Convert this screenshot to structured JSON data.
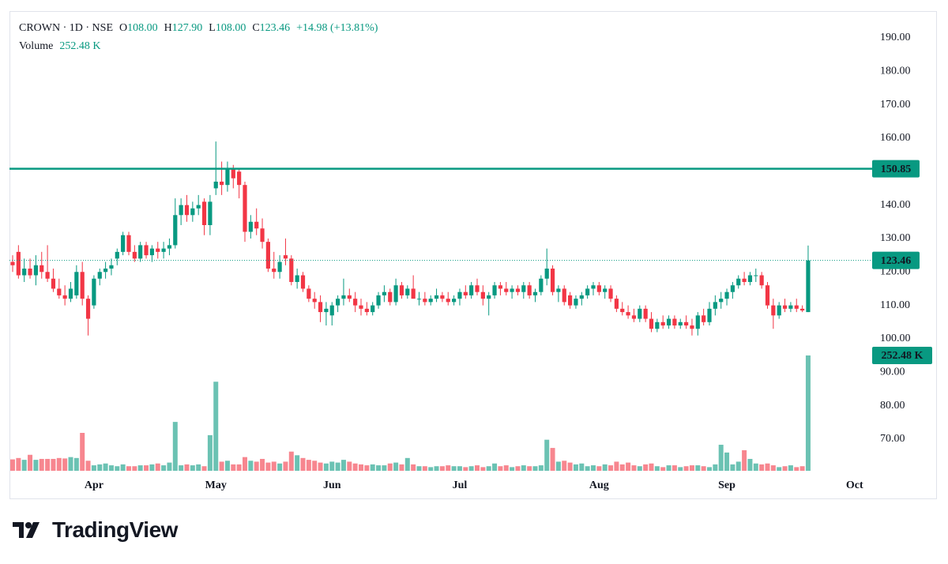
{
  "header": {
    "symbol": "CROWN · 1D · NSE",
    "o_label": "O",
    "open": "108.00",
    "h_label": "H",
    "high": "127.90",
    "l_label": "L",
    "low": "108.00",
    "c_label": "C",
    "close": "123.46",
    "change": "+14.98 (+13.81%)",
    "volume_label": "Volume",
    "volume": "252.48 K"
  },
  "brand": "TradingView",
  "chart_data": {
    "type": "candlestick",
    "up_color": "#089981",
    "down_color": "#f23645",
    "ylim": [
      60.55,
      198.0
    ],
    "yticks": [
      {
        "value": 190,
        "label": "190.00"
      },
      {
        "value": 180,
        "label": "180.00"
      },
      {
        "value": 170,
        "label": "170.00"
      },
      {
        "value": 160,
        "label": "160.00"
      },
      {
        "value": 150,
        "label": "150.00"
      },
      {
        "value": 140,
        "label": "140.00"
      },
      {
        "value": 130,
        "label": "130.00"
      },
      {
        "value": 120,
        "label": "120.00"
      },
      {
        "value": 110,
        "label": "110.00"
      },
      {
        "value": 100,
        "label": "100.00"
      },
      {
        "value": 90,
        "label": "90.00"
      },
      {
        "value": 80,
        "label": "80.00"
      },
      {
        "value": 70,
        "label": "70.00"
      }
    ],
    "hline": 150.85,
    "volume_value_label": "252.48 K",
    "categories": [
      null,
      null,
      null,
      null,
      null,
      null,
      null,
      null,
      null,
      null,
      null,
      null,
      null,
      null,
      "Apr",
      null,
      null,
      null,
      null,
      null,
      null,
      null,
      null,
      null,
      null,
      null,
      null,
      null,
      null,
      null,
      null,
      null,
      null,
      null,
      null,
      "May",
      null,
      null,
      null,
      null,
      null,
      null,
      null,
      null,
      null,
      null,
      null,
      null,
      null,
      null,
      null,
      null,
      null,
      null,
      null,
      "Jun",
      null,
      null,
      null,
      null,
      null,
      null,
      null,
      null,
      null,
      null,
      null,
      null,
      null,
      null,
      null,
      null,
      null,
      null,
      null,
      null,
      null,
      "Jul",
      null,
      null,
      null,
      null,
      null,
      null,
      null,
      null,
      null,
      null,
      null,
      null,
      null,
      null,
      null,
      null,
      null,
      null,
      null,
      null,
      null,
      null,
      null,
      "Aug",
      null,
      null,
      null,
      null,
      null,
      null,
      null,
      null,
      null,
      null,
      null,
      null,
      null,
      null,
      null,
      null,
      null,
      null,
      null,
      null,
      null,
      "Sep",
      null,
      null,
      null,
      null,
      null,
      null,
      null,
      null,
      null,
      null,
      null,
      null,
      null,
      null,
      null,
      null,
      null,
      null,
      null,
      null,
      null,
      "Oct",
      null,
      null
    ],
    "candles": [
      [
        123,
        125,
        120,
        122
      ],
      [
        126,
        128,
        118,
        119
      ],
      [
        119,
        124,
        117,
        121
      ],
      [
        121,
        124,
        118,
        119
      ],
      [
        119,
        125,
        116,
        122
      ],
      [
        122,
        126,
        118,
        120
      ],
      [
        120,
        128,
        117,
        118
      ],
      [
        118,
        121,
        114,
        115
      ],
      [
        115,
        118,
        112,
        113
      ],
      [
        113,
        116,
        110,
        112
      ],
      [
        112,
        117,
        111,
        115
      ],
      [
        113,
        122,
        112,
        120
      ],
      [
        120,
        123,
        110,
        112
      ],
      [
        112,
        113,
        101,
        106
      ],
      [
        110,
        119,
        109,
        118
      ],
      [
        118,
        121,
        116,
        120
      ],
      [
        120,
        123,
        118,
        121
      ],
      [
        121,
        124,
        119,
        122
      ],
      [
        124,
        127,
        122,
        126
      ],
      [
        126,
        132,
        125,
        131
      ],
      [
        131,
        132,
        125,
        126
      ],
      [
        126,
        128,
        123,
        124
      ],
      [
        124,
        129,
        123,
        128
      ],
      [
        128,
        129,
        124,
        125
      ],
      [
        125,
        128,
        123,
        127
      ],
      [
        127,
        129,
        124,
        126
      ],
      [
        126,
        129,
        124,
        127
      ],
      [
        127,
        130,
        125,
        128
      ],
      [
        128,
        142,
        127,
        137
      ],
      [
        137,
        142,
        134,
        140
      ],
      [
        140,
        143,
        135,
        137
      ],
      [
        137,
        141,
        135,
        139
      ],
      [
        139,
        143,
        137,
        140
      ],
      [
        141,
        142,
        131,
        134
      ],
      [
        134,
        143,
        131,
        141
      ],
      [
        145,
        159,
        143,
        147
      ],
      [
        147,
        153,
        143,
        146
      ],
      [
        146,
        153,
        144,
        151
      ],
      [
        151,
        152,
        145,
        148
      ],
      [
        150,
        151,
        142,
        146
      ],
      [
        146,
        147,
        129,
        132
      ],
      [
        132,
        137,
        130,
        135
      ],
      [
        135,
        139,
        131,
        133
      ],
      [
        133,
        136,
        127,
        129
      ],
      [
        129,
        130,
        120,
        121
      ],
      [
        121,
        126,
        118,
        120
      ],
      [
        120,
        125,
        118,
        123
      ],
      [
        125,
        130,
        122,
        124
      ],
      [
        124,
        125,
        116,
        117
      ],
      [
        117,
        121,
        115,
        119
      ],
      [
        119,
        120,
        114,
        115
      ],
      [
        115,
        116,
        111,
        112
      ],
      [
        112,
        114,
        109,
        111
      ],
      [
        111,
        113,
        105,
        108
      ],
      [
        108,
        111,
        104,
        109
      ],
      [
        107,
        111,
        104,
        110
      ],
      [
        110,
        113,
        108,
        112
      ],
      [
        112,
        118,
        110,
        113
      ],
      [
        113,
        115,
        111,
        112
      ],
      [
        112,
        114,
        108,
        110
      ],
      [
        110,
        112,
        107,
        109
      ],
      [
        109,
        111,
        107,
        108
      ],
      [
        108,
        111,
        107,
        110
      ],
      [
        110,
        114,
        109,
        113
      ],
      [
        113,
        116,
        111,
        114
      ],
      [
        114,
        115,
        110,
        111
      ],
      [
        111,
        118,
        110,
        116
      ],
      [
        116,
        117,
        112,
        113
      ],
      [
        113,
        116,
        112,
        115
      ],
      [
        115,
        119,
        112,
        112
      ],
      [
        112,
        114,
        110,
        112
      ],
      [
        112,
        114,
        110,
        111
      ],
      [
        111,
        113,
        110,
        112
      ],
      [
        112,
        115,
        111,
        113
      ],
      [
        113,
        114,
        111,
        112
      ],
      [
        112,
        114,
        110,
        111
      ],
      [
        111,
        113,
        110,
        112
      ],
      [
        112,
        115,
        110,
        114
      ],
      [
        114,
        116,
        112,
        113
      ],
      [
        113,
        117,
        112,
        116
      ],
      [
        116,
        118,
        113,
        114
      ],
      [
        114,
        116,
        110,
        112
      ],
      [
        112,
        114,
        107,
        113
      ],
      [
        113,
        117,
        112,
        116
      ],
      [
        116,
        117,
        113,
        115
      ],
      [
        115,
        117,
        113,
        114
      ],
      [
        114,
        116,
        112,
        115
      ],
      [
        115,
        116,
        113,
        114
      ],
      [
        114,
        117,
        112,
        116
      ],
      [
        116,
        117,
        112,
        113
      ],
      [
        113,
        115,
        111,
        114
      ],
      [
        114,
        119,
        113,
        118
      ],
      [
        118,
        127,
        116,
        121
      ],
      [
        121,
        122,
        113,
        114
      ],
      [
        114,
        116,
        111,
        115
      ],
      [
        115,
        116,
        110,
        111
      ],
      [
        113,
        114,
        109,
        110
      ],
      [
        110,
        113,
        109,
        112
      ],
      [
        112,
        114,
        110,
        113
      ],
      [
        113,
        116,
        112,
        115
      ],
      [
        115,
        117,
        113,
        116
      ],
      [
        116,
        117,
        113,
        114
      ],
      [
        114,
        116,
        112,
        115
      ],
      [
        115,
        116,
        111,
        112
      ],
      [
        112,
        113,
        108,
        109
      ],
      [
        109,
        111,
        107,
        108
      ],
      [
        108,
        110,
        106,
        107
      ],
      [
        107,
        109,
        105,
        106
      ],
      [
        106,
        110,
        105,
        109
      ],
      [
        109,
        110,
        105,
        106
      ],
      [
        106,
        108,
        102,
        103
      ],
      [
        103,
        106,
        102,
        105
      ],
      [
        105,
        107,
        103,
        104
      ],
      [
        104,
        107,
        103,
        106
      ],
      [
        106,
        107,
        103,
        104
      ],
      [
        104,
        106,
        103,
        105
      ],
      [
        105,
        107,
        103,
        104
      ],
      [
        104,
        106,
        101,
        103
      ],
      [
        103,
        108,
        101,
        107
      ],
      [
        107,
        109,
        104,
        105
      ],
      [
        105,
        111,
        104,
        109
      ],
      [
        109,
        113,
        107,
        111
      ],
      [
        111,
        114,
        109,
        112
      ],
      [
        112,
        115,
        110,
        114
      ],
      [
        114,
        117,
        112,
        116
      ],
      [
        116,
        119,
        115,
        118
      ],
      [
        118,
        120,
        116,
        117
      ],
      [
        117,
        120,
        116,
        119
      ],
      [
        119,
        121,
        117,
        119
      ],
      [
        119,
        120,
        115,
        116
      ],
      [
        116,
        117,
        109,
        110
      ],
      [
        110,
        112,
        103,
        107
      ],
      [
        107,
        111,
        106,
        110
      ],
      [
        110,
        112,
        108,
        109
      ],
      [
        109,
        111,
        108,
        110
      ],
      [
        110,
        112,
        108,
        109
      ],
      [
        109,
        110,
        108,
        108.48
      ],
      [
        108.0,
        127.9,
        108.0,
        123.46
      ],
      null,
      null,
      null,
      null,
      null,
      null,
      null,
      null,
      null,
      null
    ],
    "volume": [
      25,
      28,
      24,
      35,
      24,
      26,
      26,
      26,
      28,
      27,
      30,
      28,
      83,
      22,
      12,
      14,
      16,
      12,
      10,
      14,
      10,
      10,
      12,
      12,
      14,
      16,
      12,
      18,
      107,
      12,
      14,
      12,
      14,
      10,
      78,
      195,
      20,
      22,
      14,
      14,
      30,
      22,
      20,
      26,
      18,
      20,
      16,
      20,
      42,
      34,
      28,
      24,
      22,
      18,
      16,
      20,
      18,
      24,
      20,
      16,
      14,
      12,
      14,
      12,
      12,
      16,
      18,
      14,
      28,
      14,
      10,
      10,
      8,
      10,
      10,
      12,
      10,
      10,
      8,
      10,
      12,
      8,
      10,
      16,
      10,
      12,
      8,
      10,
      12,
      10,
      10,
      12,
      68,
      50,
      20,
      22,
      18,
      14,
      16,
      10,
      12,
      10,
      14,
      12,
      20,
      14,
      18,
      12,
      10,
      14,
      16,
      10,
      8,
      12,
      12,
      8,
      10,
      12,
      12,
      10,
      8,
      14,
      57,
      40,
      14,
      20,
      45,
      26,
      16,
      14,
      16,
      12,
      8,
      10,
      12,
      8,
      10,
      252.48,
      null,
      null,
      null,
      null,
      null,
      null,
      null,
      null,
      null,
      null
    ]
  }
}
